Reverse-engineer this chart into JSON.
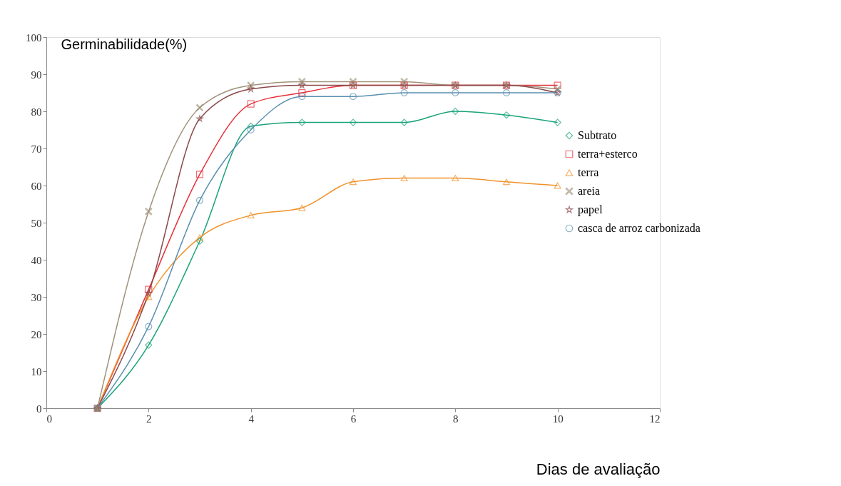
{
  "chart_data": {
    "type": "line",
    "ylabel": "Germinabilidade(%)",
    "xlabel": "Dias de avaliação",
    "x": [
      1,
      2,
      3,
      4,
      5,
      6,
      7,
      8,
      9,
      10
    ],
    "series": [
      {
        "name": "Subtrato",
        "color": "#1aa37a",
        "marker": "diamond",
        "values": [
          0,
          17,
          45,
          76,
          77,
          77,
          77,
          80,
          79,
          77
        ]
      },
      {
        "name": "terra+esterco",
        "color": "#e8303a",
        "marker": "square",
        "values": [
          0,
          32,
          63,
          82,
          85,
          87,
          87,
          87,
          87,
          87
        ]
      },
      {
        "name": "terra",
        "color": "#f0922b",
        "marker": "triangle",
        "values": [
          0,
          30,
          46,
          52,
          54,
          61,
          62,
          62,
          61,
          60
        ]
      },
      {
        "name": "areia",
        "color": "#a0937a",
        "marker": "cross",
        "values": [
          0,
          53,
          81,
          87,
          88,
          88,
          88,
          87,
          87,
          86
        ]
      },
      {
        "name": "papel",
        "color": "#8b4a4a",
        "marker": "star",
        "values": [
          0,
          31,
          78,
          86,
          87,
          87,
          87,
          87,
          87,
          85
        ]
      },
      {
        "name": "casca de arroz carbonizada",
        "color": "#5a8fb0",
        "marker": "circle",
        "values": [
          0,
          22,
          56,
          75,
          84,
          84,
          85,
          85,
          85,
          85
        ]
      }
    ],
    "xlim": [
      0,
      12
    ],
    "xticks": [
      0,
      2,
      4,
      6,
      8,
      10,
      12
    ],
    "ylim": [
      0,
      100
    ],
    "yticks": [
      0,
      10,
      20,
      30,
      40,
      50,
      60,
      70,
      80,
      90,
      100
    ],
    "grid": false,
    "legend": "right",
    "line_style": "solid"
  }
}
